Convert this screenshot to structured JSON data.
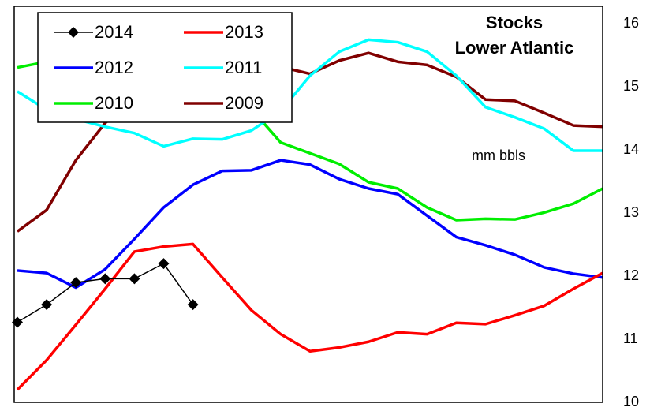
{
  "chart_data": {
    "type": "line",
    "title": "Stocks",
    "subtitle": "Lower Atlantic",
    "annotation": "mm bbls",
    "categories": [
      null,
      null,
      null,
      null,
      null,
      null,
      null,
      null,
      null,
      null,
      null,
      null,
      null,
      null,
      null,
      null,
      null,
      null,
      null,
      null,
      null
    ],
    "series": [
      {
        "name": "2014",
        "color": "#000000",
        "marker": "diamond",
        "values": [
          11.27,
          11.55,
          11.9,
          11.96,
          11.96,
          12.2,
          11.55,
          null,
          null,
          null,
          null,
          null,
          null,
          null,
          null,
          null,
          null,
          null,
          null,
          null,
          null
        ]
      },
      {
        "name": "2013",
        "color": "#ff0000",
        "values": [
          10.2,
          10.67,
          11.23,
          11.8,
          12.39,
          12.47,
          12.51,
          11.98,
          11.46,
          11.08,
          10.81,
          10.87,
          10.96,
          11.11,
          11.08,
          11.26,
          11.24,
          11.38,
          11.53,
          11.8,
          12.05
        ]
      },
      {
        "name": "2012",
        "color": "#0000ff",
        "values": [
          12.09,
          12.05,
          11.82,
          12.11,
          12.59,
          13.09,
          13.45,
          13.67,
          13.68,
          13.84,
          13.77,
          13.54,
          13.39,
          13.3,
          12.96,
          12.62,
          12.49,
          12.34,
          12.14,
          12.04,
          11.98
        ]
      },
      {
        "name": "2011",
        "color": "#00ffff",
        "values": [
          14.93,
          14.64,
          14.49,
          14.37,
          14.27,
          14.06,
          14.18,
          14.17,
          14.31,
          14.62,
          15.18,
          15.56,
          15.75,
          15.71,
          15.56,
          15.18,
          14.68,
          14.52,
          14.34,
          13.99,
          13.99
        ]
      },
      {
        "name": "2010",
        "color": "#00ee00",
        "values": [
          15.31,
          15.4,
          15.45,
          15.45,
          15.4,
          15.3,
          15.2,
          15.0,
          14.65,
          14.12,
          13.95,
          13.78,
          13.49,
          13.39,
          13.09,
          12.89,
          12.91,
          12.9,
          13.01,
          13.15,
          13.39
        ]
      },
      {
        "name": "2009",
        "color": "#800000",
        "values": [
          12.71,
          13.05,
          13.84,
          14.43,
          14.8,
          15.0,
          15.1,
          15.2,
          15.3,
          15.32,
          15.21,
          15.42,
          15.54,
          15.4,
          15.35,
          15.16,
          14.8,
          14.78,
          14.59,
          14.39,
          14.37
        ]
      }
    ],
    "ylim": [
      10,
      16.28
    ],
    "yticks": [
      10,
      11,
      12,
      13,
      14,
      15,
      16
    ],
    "y_axis_side": "right",
    "grid": false,
    "legend": "upper left"
  }
}
